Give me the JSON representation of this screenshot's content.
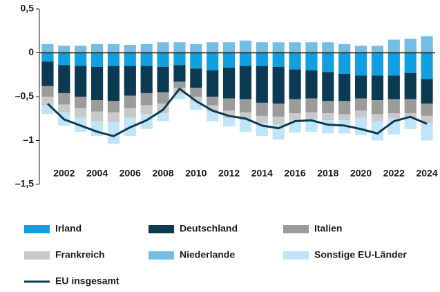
{
  "chart_data": {
    "type": "bar",
    "stacked": true,
    "categories": [
      null,
      "2002",
      null,
      "2004",
      null,
      "2006",
      null,
      "2008",
      null,
      "2010",
      null,
      "2012",
      null,
      "2014",
      null,
      "2016",
      null,
      "2018",
      null,
      "2020",
      null,
      "2022",
      null,
      "2024"
    ],
    "ylim": [
      -1.5,
      0.5
    ],
    "yticks": [
      {
        "value": 0.5,
        "label": "0,5"
      },
      0,
      {
        "value": -0.5,
        "label": "–0,5"
      },
      {
        "value": -1,
        "label": "–1"
      },
      {
        "value": -1.5,
        "label": "–1,5"
      }
    ],
    "series": [
      {
        "name": "Irland",
        "color": "#129fe0",
        "values": [
          -0.1,
          -0.14,
          -0.15,
          -0.16,
          -0.15,
          -0.15,
          -0.15,
          -0.16,
          -0.14,
          -0.18,
          -0.2,
          -0.17,
          -0.15,
          -0.15,
          -0.16,
          -0.19,
          -0.2,
          -0.22,
          -0.24,
          -0.26,
          -0.26,
          -0.26,
          -0.23,
          -0.3
        ]
      },
      {
        "name": "Deutschland",
        "color": "#0b3a52",
        "values": [
          -0.28,
          -0.32,
          -0.35,
          -0.38,
          -0.4,
          -0.34,
          -0.31,
          -0.29,
          -0.19,
          -0.22,
          -0.3,
          -0.35,
          -0.38,
          -0.42,
          -0.42,
          -0.34,
          -0.32,
          -0.33,
          -0.31,
          -0.26,
          -0.28,
          -0.27,
          -0.3,
          -0.28
        ]
      },
      {
        "name": "Italien",
        "color": "#9b9b9b",
        "values": [
          -0.12,
          -0.13,
          -0.13,
          -0.13,
          -0.13,
          -0.14,
          -0.14,
          -0.13,
          -0.07,
          -0.1,
          -0.1,
          -0.14,
          -0.15,
          -0.15,
          -0.15,
          -0.16,
          -0.16,
          -0.14,
          -0.15,
          -0.14,
          -0.16,
          -0.16,
          -0.16,
          -0.14
        ]
      },
      {
        "name": "Frankreich",
        "color": "#c9c9c9",
        "values": [
          -0.1,
          -0.09,
          -0.11,
          -0.11,
          -0.11,
          -0.11,
          -0.1,
          -0.11,
          -0.07,
          -0.05,
          -0.07,
          -0.08,
          -0.09,
          -0.08,
          -0.09,
          -0.08,
          -0.08,
          -0.08,
          -0.07,
          -0.08,
          -0.08,
          -0.06,
          -0.05,
          -0.08
        ]
      },
      {
        "name": "Niederlande",
        "color": "#74bee6",
        "values": [
          0.1,
          0.08,
          0.08,
          0.1,
          0.1,
          0.09,
          0.1,
          0.12,
          0.12,
          0.1,
          0.12,
          0.12,
          0.14,
          0.12,
          0.12,
          0.12,
          0.12,
          0.12,
          0.1,
          0.08,
          0.08,
          0.15,
          0.16,
          0.19
        ]
      },
      {
        "name": "Sonstige EU-Länder",
        "color": "#c0e4f8",
        "values": [
          -0.1,
          -0.15,
          -0.16,
          -0.17,
          -0.25,
          -0.21,
          -0.17,
          -0.09,
          -0.06,
          -0.1,
          -0.11,
          -0.1,
          -0.13,
          -0.15,
          -0.17,
          -0.14,
          -0.14,
          -0.15,
          -0.15,
          -0.2,
          -0.22,
          -0.18,
          -0.13,
          -0.2
        ]
      },
      {
        "name": "EU insgesamt",
        "type": "line",
        "color": "#0b3a52",
        "values": [
          -0.58,
          -0.76,
          -0.83,
          -0.9,
          -0.95,
          -0.85,
          -0.77,
          -0.65,
          -0.41,
          -0.55,
          -0.66,
          -0.72,
          -0.75,
          -0.83,
          -0.86,
          -0.78,
          -0.77,
          -0.82,
          -0.83,
          -0.87,
          -0.92,
          -0.78,
          -0.73,
          -0.81
        ]
      }
    ]
  }
}
